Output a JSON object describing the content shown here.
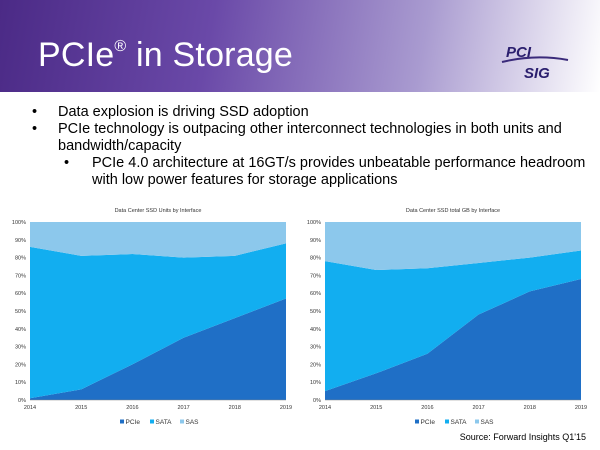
{
  "slide": {
    "title": "PCIe",
    "title_sup": "®",
    "title_rest": " in Storage",
    "logo_top": "PCI",
    "logo_bottom": "SIG",
    "bullets": [
      "Data explosion is driving SSD adoption",
      "PCIe technology is outpacing other interconnect technologies in both units and bandwidth/capacity"
    ],
    "sub_bullets": [
      "PCIe 4.0 architecture at 16GT/s provides unbeatable performance headroom with low power features for storage applications"
    ],
    "source": "Source: Forward Insights Q1'15"
  },
  "colors": {
    "pcie": "#1f6fc6",
    "sata": "#12aef0",
    "sas": "#8cc8ec"
  },
  "chart_data": [
    {
      "type": "area",
      "stacked": true,
      "title": "Data Center SSD Units by Interface",
      "x": [
        "2014",
        "2015",
        "2016",
        "2017",
        "2018",
        "2019"
      ],
      "series": [
        {
          "name": "PCIe",
          "values": [
            1,
            6,
            20,
            35,
            46,
            57
          ]
        },
        {
          "name": "SATA",
          "values": [
            85,
            75,
            62,
            45,
            35,
            31
          ]
        },
        {
          "name": "SAS",
          "values": [
            14,
            19,
            18,
            20,
            19,
            12
          ]
        }
      ],
      "ylim": [
        0,
        100
      ],
      "yticks": [
        "0%",
        "10%",
        "20%",
        "30%",
        "40%",
        "50%",
        "60%",
        "70%",
        "80%",
        "90%",
        "100%"
      ],
      "legend": "bottom"
    },
    {
      "type": "area",
      "stacked": true,
      "title": "Data Center SSD total GB by Interface",
      "x": [
        "2014",
        "2015",
        "2016",
        "2017",
        "2018",
        "2019"
      ],
      "series": [
        {
          "name": "PCIe",
          "values": [
            5,
            15,
            26,
            48,
            61,
            68
          ]
        },
        {
          "name": "SATA",
          "values": [
            73,
            58,
            48,
            29,
            19,
            16
          ]
        },
        {
          "name": "SAS",
          "values": [
            22,
            27,
            26,
            23,
            20,
            16
          ]
        }
      ],
      "ylim": [
        0,
        100
      ],
      "yticks": [
        "0%",
        "10%",
        "20%",
        "30%",
        "40%",
        "50%",
        "60%",
        "70%",
        "80%",
        "90%",
        "100%"
      ],
      "legend": "bottom"
    }
  ]
}
